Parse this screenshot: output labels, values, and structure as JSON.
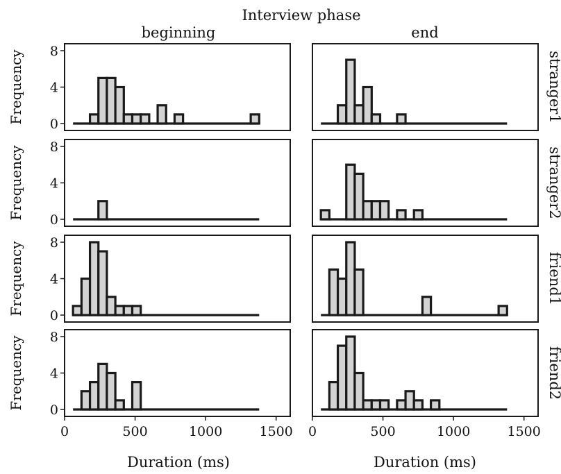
{
  "figure": {
    "title": "Interview phase",
    "col_labels": [
      "beginning",
      "end"
    ],
    "row_labels": [
      "stranger1",
      "stranger2",
      "friend1",
      "friend2"
    ],
    "ylabel": "Frequency",
    "xlabel": "Duration (ms)"
  },
  "colors": {
    "bar_fill": "#d3d3d3",
    "bar_edge": "#1a1a1a",
    "frame": "#1a1a1a"
  },
  "chart_data": [
    {
      "type": "bar",
      "panel": "stranger1 / beginning",
      "bin_width": 60,
      "bin_start": 60,
      "xlim": [
        0,
        1600
      ],
      "ylim": [
        0,
        8
      ],
      "xticks": [
        0,
        500,
        1000,
        1500
      ],
      "yticks": [
        0,
        4,
        8
      ],
      "values": [
        0,
        0,
        1,
        5,
        5,
        4,
        1,
        1,
        1,
        0,
        2,
        0,
        1,
        0,
        0,
        0,
        0,
        0,
        0,
        0,
        0,
        1
      ]
    },
    {
      "type": "bar",
      "panel": "stranger1 / end",
      "bin_width": 60,
      "bin_start": 60,
      "xlim": [
        0,
        1600
      ],
      "ylim": [
        0,
        8
      ],
      "xticks": [
        0,
        500,
        1000,
        1500
      ],
      "yticks": [
        0,
        4,
        8
      ],
      "values": [
        0,
        0,
        2,
        7,
        2,
        4,
        1,
        0,
        0,
        1,
        0,
        0,
        0,
        0,
        0,
        0,
        0,
        0,
        0,
        0,
        0,
        0
      ]
    },
    {
      "type": "bar",
      "panel": "stranger2 / beginning",
      "bin_width": 60,
      "bin_start": 60,
      "xlim": [
        0,
        1600
      ],
      "ylim": [
        0,
        8
      ],
      "xticks": [
        0,
        500,
        1000,
        1500
      ],
      "yticks": [
        0,
        4,
        8
      ],
      "values": [
        0,
        0,
        0,
        2,
        0,
        0,
        0,
        0,
        0,
        0,
        0,
        0,
        0,
        0,
        0,
        0,
        0,
        0,
        0,
        0,
        0,
        0
      ]
    },
    {
      "type": "bar",
      "panel": "stranger2 / end",
      "bin_width": 60,
      "bin_start": 60,
      "xlim": [
        0,
        1600
      ],
      "ylim": [
        0,
        8
      ],
      "xticks": [
        0,
        500,
        1000,
        1500
      ],
      "yticks": [
        0,
        4,
        8
      ],
      "values": [
        1,
        0,
        0,
        6,
        5,
        2,
        2,
        2,
        0,
        1,
        0,
        1,
        0,
        0,
        0,
        0,
        0,
        0,
        0,
        0,
        0,
        0
      ]
    },
    {
      "type": "bar",
      "panel": "friend1 / beginning",
      "bin_width": 60,
      "bin_start": 60,
      "xlim": [
        0,
        1600
      ],
      "ylim": [
        0,
        8
      ],
      "xticks": [
        0,
        500,
        1000,
        1500
      ],
      "yticks": [
        0,
        4,
        8
      ],
      "values": [
        1,
        4,
        8,
        7,
        2,
        1,
        1,
        1,
        0,
        0,
        0,
        0,
        0,
        0,
        0,
        0,
        0,
        0,
        0,
        0,
        0,
        0
      ]
    },
    {
      "type": "bar",
      "panel": "friend1 / end",
      "bin_width": 60,
      "bin_start": 60,
      "xlim": [
        0,
        1600
      ],
      "ylim": [
        0,
        8
      ],
      "xticks": [
        0,
        500,
        1000,
        1500
      ],
      "yticks": [
        0,
        4,
        8
      ],
      "values": [
        0,
        5,
        4,
        8,
        5,
        0,
        0,
        0,
        0,
        0,
        0,
        0,
        2,
        0,
        0,
        0,
        0,
        0,
        0,
        0,
        0,
        1
      ]
    },
    {
      "type": "bar",
      "panel": "friend2 / beginning",
      "bin_width": 60,
      "bin_start": 60,
      "xlim": [
        0,
        1600
      ],
      "ylim": [
        0,
        8
      ],
      "xticks": [
        0,
        500,
        1000,
        1500
      ],
      "yticks": [
        0,
        4,
        8
      ],
      "values": [
        0,
        2,
        3,
        5,
        4,
        1,
        0,
        3,
        0,
        0,
        0,
        0,
        0,
        0,
        0,
        0,
        0,
        0,
        0,
        0,
        0,
        0
      ]
    },
    {
      "type": "bar",
      "panel": "friend2 / end",
      "bin_width": 60,
      "bin_start": 60,
      "xlim": [
        0,
        1600
      ],
      "ylim": [
        0,
        8
      ],
      "xticks": [
        0,
        500,
        1000,
        1500
      ],
      "yticks": [
        0,
        4,
        8
      ],
      "values": [
        0,
        3,
        7,
        8,
        4,
        1,
        1,
        1,
        0,
        1,
        2,
        1,
        0,
        1,
        0,
        0,
        0,
        0,
        0,
        0,
        0,
        0
      ]
    }
  ]
}
